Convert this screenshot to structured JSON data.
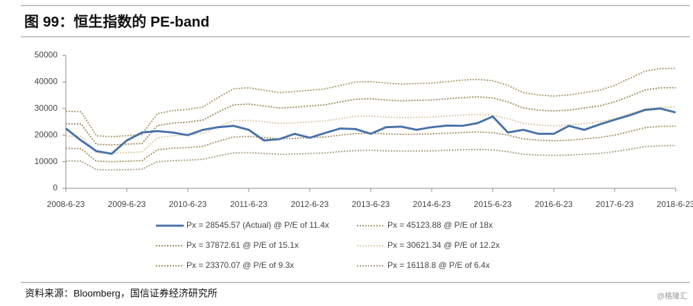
{
  "chart_data": {
    "type": "line",
    "title": "图 99：恒生指数的 PE-band",
    "source": "资料来源：Bloomberg，国信证券经济研究所",
    "watermark": "@格隆汇",
    "x": [
      "2008-6-23",
      "2008-9-23",
      "2008-12-23",
      "2009-3-23",
      "2009-6-23",
      "2009-9-23",
      "2009-12-23",
      "2010-3-23",
      "2010-6-23",
      "2010-9-23",
      "2010-12-23",
      "2011-3-23",
      "2011-6-23",
      "2011-9-23",
      "2011-12-23",
      "2012-3-23",
      "2012-6-23",
      "2012-9-23",
      "2012-12-23",
      "2013-3-23",
      "2013-6-23",
      "2013-9-23",
      "2013-12-23",
      "2014-3-23",
      "2014-6-23",
      "2014-9-23",
      "2014-12-23",
      "2015-3-23",
      "2015-6-23",
      "2015-9-23",
      "2015-12-23",
      "2016-3-23",
      "2016-6-23",
      "2016-9-23",
      "2016-12-23",
      "2017-3-23",
      "2017-6-23",
      "2017-9-23",
      "2017-12-23",
      "2018-3-23",
      "2018-6-23"
    ],
    "series": [
      {
        "name": "Px = 28545.57 (Actual) @ P/E of 11.4x",
        "color": "#4a72a8",
        "style": "solid",
        "values": [
          22500,
          18000,
          14000,
          13000,
          18000,
          21000,
          21500,
          21000,
          20000,
          22000,
          23000,
          23500,
          22000,
          18000,
          18500,
          20500,
          19000,
          20800,
          22500,
          22300,
          20500,
          23000,
          23200,
          22000,
          23000,
          23600,
          23500,
          24500,
          27000,
          21000,
          22000,
          20500,
          20500,
          23500,
          22000,
          24000,
          25800,
          27500,
          29500,
          30000,
          28545.57
        ]
      },
      {
        "name": "Px = 45123.88 @ P/E of 18x",
        "color": "#a89a6a",
        "style": "dotted",
        "values": [
          29000,
          28800,
          19800,
          19400,
          19800,
          20200,
          28100,
          29200,
          29700,
          30600,
          34200,
          37400,
          37800,
          36900,
          36000,
          36400,
          36900,
          37400,
          38700,
          40000,
          40100,
          39600,
          39200,
          39400,
          39600,
          40100,
          40700,
          41000,
          40500,
          38700,
          36000,
          35100,
          34700,
          35100,
          36000,
          36900,
          38700,
          41400,
          44100,
          45000,
          45123.88
        ]
      },
      {
        "name": "Px = 37872.61 @ P/E of 15.1x",
        "color": "#9c8c5c",
        "style": "dotted",
        "values": [
          24300,
          24200,
          16600,
          16300,
          16600,
          16900,
          23600,
          24500,
          24900,
          25700,
          28700,
          31400,
          31700,
          31000,
          30200,
          30500,
          31000,
          31400,
          32500,
          33500,
          33700,
          33200,
          32900,
          33100,
          33200,
          33700,
          34100,
          34400,
          34000,
          32500,
          30200,
          29400,
          29100,
          29400,
          30200,
          31000,
          32500,
          34700,
          37000,
          37800,
          37872.61
        ]
      },
      {
        "name": "Px = 30621.34 @ P/E of 12.2x",
        "color": "#d9cba8",
        "style": "dotted",
        "values": [
          19600,
          19500,
          13400,
          13200,
          13400,
          13700,
          19000,
          19800,
          20100,
          20700,
          23200,
          25400,
          25600,
          25000,
          24400,
          24600,
          25000,
          25400,
          26200,
          27100,
          27200,
          26800,
          26600,
          26700,
          26800,
          27200,
          27600,
          27800,
          27500,
          26200,
          24400,
          23800,
          23500,
          23800,
          24400,
          25000,
          26200,
          28100,
          29900,
          30500,
          30621.34
        ]
      },
      {
        "name": "Px = 23370.07 @ P/E of 9.3x",
        "color": "#a39262",
        "style": "dotted",
        "values": [
          15000,
          14900,
          10200,
          10000,
          10200,
          10400,
          14500,
          15100,
          15300,
          15800,
          17700,
          19300,
          19500,
          19100,
          18600,
          18800,
          19100,
          19300,
          20000,
          20600,
          20700,
          20500,
          20300,
          20400,
          20500,
          20700,
          21000,
          21200,
          20900,
          20000,
          18600,
          18100,
          17900,
          18100,
          18600,
          19100,
          20000,
          21400,
          22800,
          23300,
          23370.07
        ]
      },
      {
        "name": "Px = 16118.8 @ P/E of 6.4x",
        "color": "#a99f80",
        "style": "dotted",
        "values": [
          10300,
          10200,
          7000,
          6900,
          7000,
          7200,
          10000,
          10400,
          10600,
          10900,
          12200,
          13300,
          13400,
          13100,
          12800,
          12900,
          13100,
          13300,
          13800,
          14200,
          14300,
          14100,
          14000,
          14000,
          14100,
          14300,
          14500,
          14600,
          14400,
          13800,
          12800,
          12500,
          12400,
          12500,
          12800,
          13100,
          13800,
          14700,
          15700,
          16000,
          16118.8
        ]
      }
    ],
    "xlim": [
      "2008-6-23",
      "2018-6-23"
    ],
    "xticks": [
      "2008-6-23",
      "2009-6-23",
      "2010-6-23",
      "2011-6-23",
      "2012-6-23",
      "2013-6-23",
      "2014-6-23",
      "2015-6-23",
      "2016-6-23",
      "2017-6-23",
      "2018-6-23"
    ],
    "ylim": [
      0,
      50000
    ],
    "yticks": [
      0,
      10000,
      20000,
      30000,
      40000,
      50000
    ],
    "grid": false
  }
}
